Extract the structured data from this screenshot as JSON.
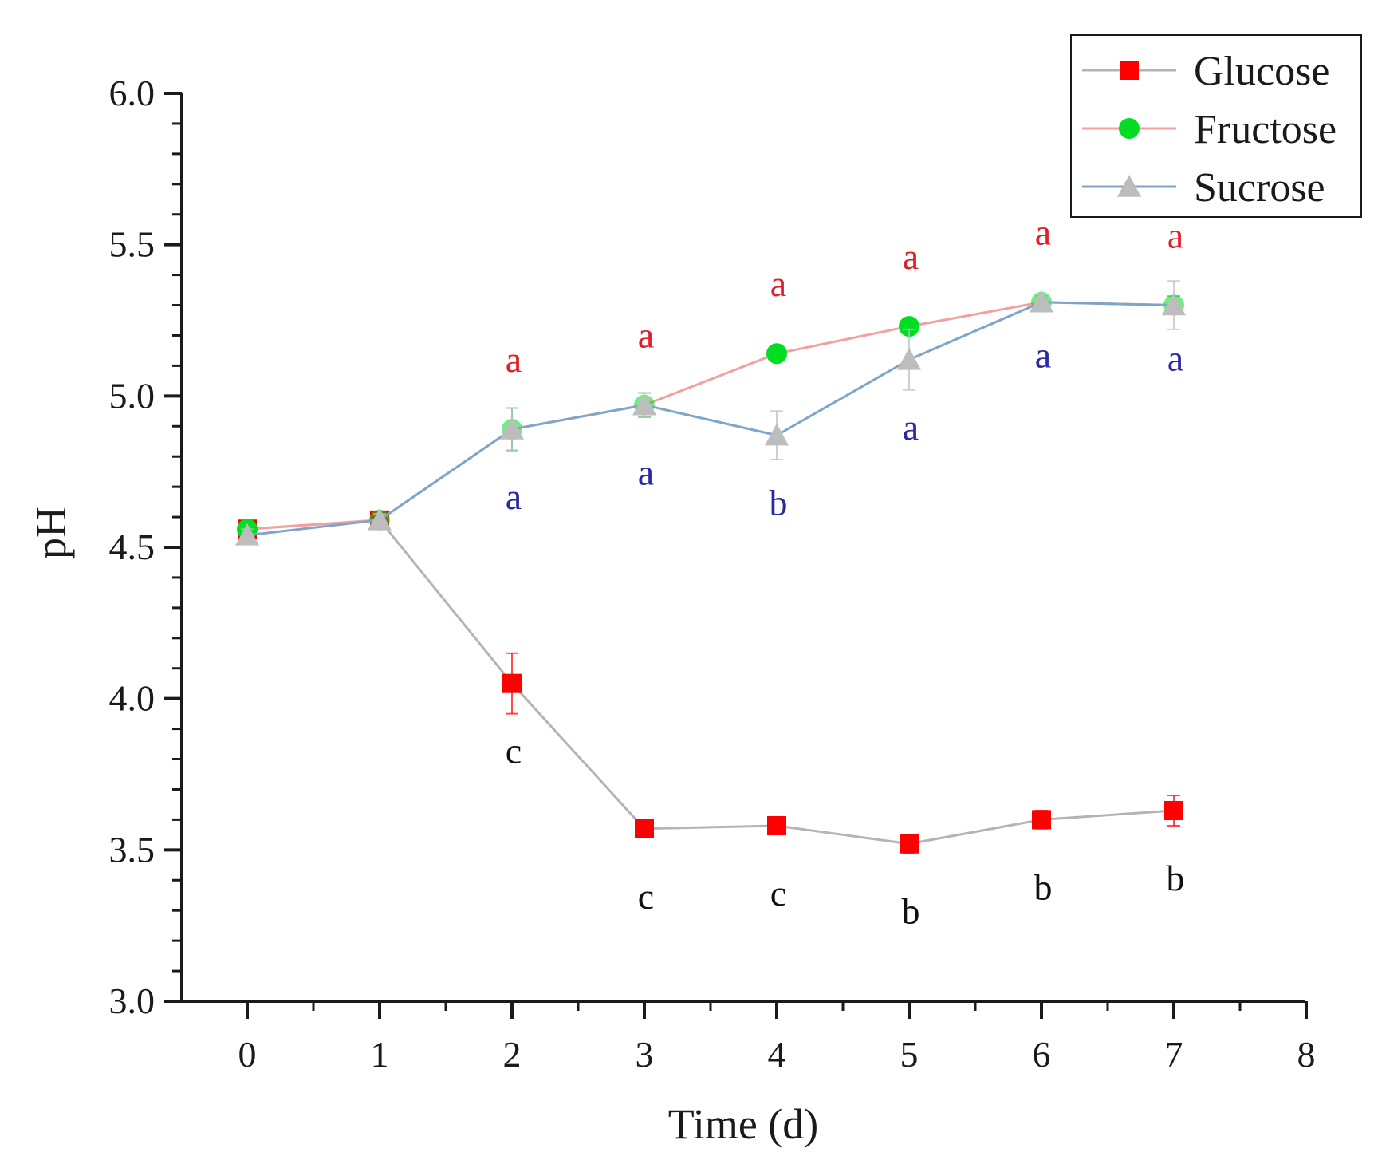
{
  "chart_data": {
    "type": "line",
    "xlabel": "Time (d)",
    "ylabel": "pH",
    "xlim": [
      -0.5,
      8
    ],
    "ylim": [
      3.0,
      6.0
    ],
    "xticks": [
      0,
      1,
      2,
      3,
      4,
      5,
      6,
      7,
      8
    ],
    "xtick_labels": [
      "0",
      "1",
      "2",
      "3",
      "4",
      "5",
      "6",
      "7",
      "8"
    ],
    "yticks": [
      3.0,
      3.5,
      4.0,
      4.5,
      5.0,
      5.5,
      6.0
    ],
    "ytick_labels": [
      "3.0",
      "3.5",
      "4.0",
      "4.5",
      "5.0",
      "5.5",
      "6.0"
    ],
    "legend_position": "top-right",
    "series": [
      {
        "name": "Glucose",
        "marker": "square",
        "color": "#ff0000",
        "line_color": "#b4b4b4",
        "x": [
          0,
          1,
          2,
          3,
          4,
          5,
          6,
          7
        ],
        "values": [
          4.56,
          4.59,
          4.05,
          3.57,
          3.58,
          3.52,
          3.6,
          3.63
        ],
        "errors": [
          0.02,
          0.02,
          0.1,
          0.02,
          0.02,
          0.03,
          0.03,
          0.05
        ],
        "letters": [
          "",
          "",
          "c",
          "c",
          "c",
          "b",
          "b",
          "b"
        ],
        "letter_color": "#111111"
      },
      {
        "name": "Fructose",
        "marker": "circle",
        "color": "#00dd22",
        "line_color": "#f2a0a0",
        "x": [
          0,
          1,
          2,
          3,
          4,
          5,
          6,
          7
        ],
        "values": [
          4.56,
          4.59,
          4.89,
          4.97,
          5.14,
          5.23,
          5.31,
          5.3
        ],
        "errors": [
          0.02,
          0.02,
          0.07,
          0.04,
          0.02,
          0.02,
          0.02,
          0.03
        ],
        "letters": [
          "",
          "",
          "a",
          "a",
          "a",
          "a",
          "a",
          "a"
        ],
        "letter_color": "#e0202a"
      },
      {
        "name": "Sucrose",
        "marker": "triangle",
        "color": "#bdbdbd",
        "line_color": "#7fa6c8",
        "x": [
          0,
          1,
          2,
          3,
          4,
          5,
          6,
          7
        ],
        "values": [
          4.54,
          4.59,
          4.89,
          4.97,
          4.87,
          5.12,
          5.31,
          5.3
        ],
        "errors": [
          0.02,
          0.02,
          0.07,
          0.04,
          0.08,
          0.1,
          0.02,
          0.08
        ],
        "letters": [
          "",
          "",
          "a",
          "a",
          "b",
          "a",
          "a",
          "a"
        ],
        "letter_color": "#2a2aa6"
      }
    ]
  }
}
